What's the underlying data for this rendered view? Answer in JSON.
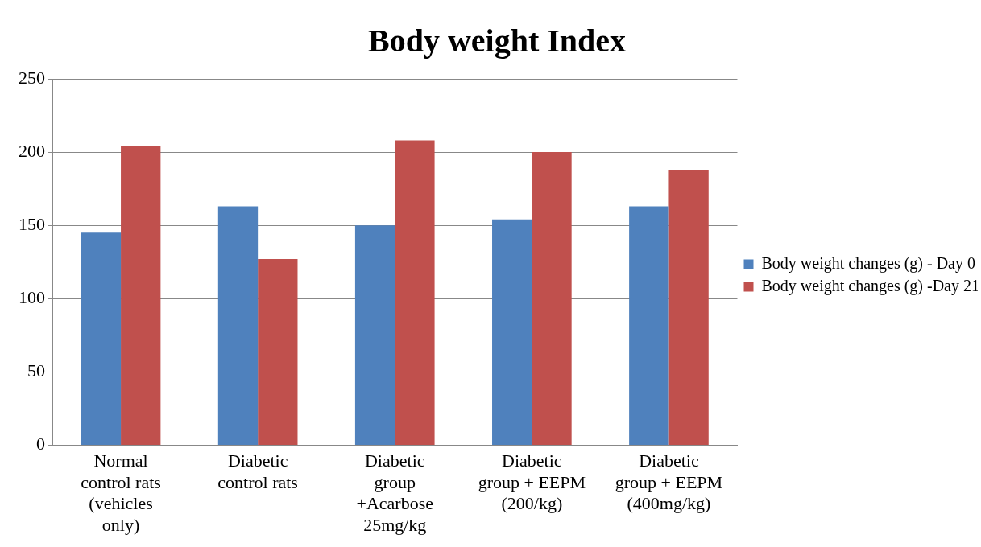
{
  "chart_data": {
    "type": "bar",
    "title": "Body weight Index",
    "categories": [
      "Normal control rats (vehicles only)",
      "Diabetic control rats",
      "Diabetic group +Acarbose 25mg/kg",
      "Diabetic group + EEPM (200/kg)",
      "Diabetic group + EEPM (400mg/kg)"
    ],
    "series": [
      {
        "name": "Body weight changes (g) - Day 0",
        "color": "#4f81bd",
        "values": [
          145,
          163,
          150,
          154,
          163
        ]
      },
      {
        "name": "Body weight changes (g) -Day 21",
        "color": "#c0504d",
        "values": [
          204,
          127,
          208,
          200,
          188
        ]
      }
    ],
    "ylim": [
      0,
      250
    ],
    "yticks": [
      0,
      50,
      100,
      150,
      200,
      250
    ],
    "grid": "y",
    "legend": "right"
  }
}
